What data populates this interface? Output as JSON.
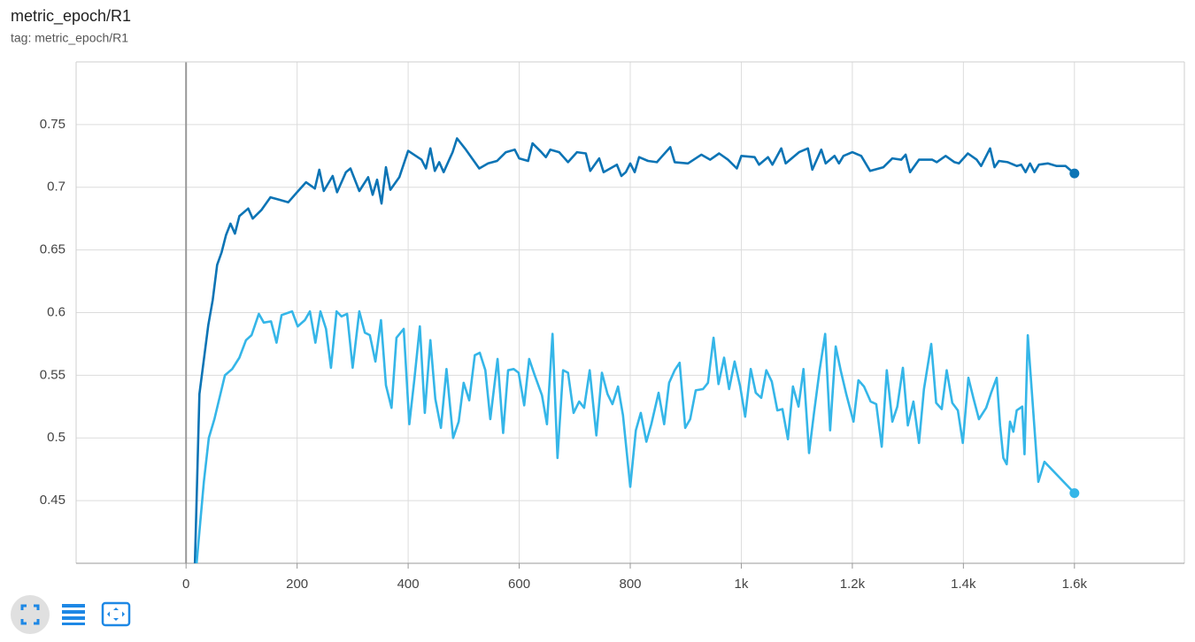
{
  "chart_data": {
    "type": "line",
    "title": "metric_epoch/R1",
    "subtitle": "tag: metric_epoch/R1",
    "xlim": [
      -198,
      1798
    ],
    "ylim": [
      0.4,
      0.8
    ],
    "xticks": [
      0,
      200,
      400,
      600,
      800,
      {
        "value": 1000,
        "label": "1k"
      },
      {
        "value": 1200,
        "label": "1.2k"
      },
      {
        "value": 1400,
        "label": "1.4k"
      },
      {
        "value": 1600,
        "label": "1.6k"
      }
    ],
    "yticks": [
      0.45,
      0.5,
      0.55,
      0.6,
      0.65,
      0.7,
      0.75
    ],
    "grid": true,
    "series": [
      {
        "color": "#0c74b5",
        "x": [
          16,
          24,
          40,
          48,
          56,
          64,
          72,
          80,
          88,
          96,
          112,
          120,
          136,
          152,
          168,
          184,
          200,
          216,
          232,
          240,
          248,
          264,
          272,
          288,
          296,
          312,
          328,
          336,
          344,
          352,
          360,
          368,
          384,
          400,
          424,
          432,
          440,
          448,
          456,
          464,
          480,
          488,
          504,
          528,
          544,
          560,
          576,
          592,
          600,
          616,
          624,
          640,
          648,
          656,
          672,
          688,
          704,
          720,
          728,
          744,
          752,
          776,
          784,
          792,
          800,
          808,
          816,
          832,
          848,
          856,
          872,
          880,
          904,
          928,
          944,
          960,
          976,
          992,
          1000,
          1024,
          1032,
          1048,
          1056,
          1072,
          1080,
          1104,
          1120,
          1128,
          1144,
          1152,
          1168,
          1176,
          1184,
          1200,
          1216,
          1232,
          1256,
          1272,
          1288,
          1296,
          1304,
          1320,
          1344,
          1352,
          1368,
          1384,
          1392,
          1408,
          1424,
          1432,
          1448,
          1456,
          1464,
          1480,
          1496,
          1504,
          1512,
          1520,
          1528,
          1536,
          1552,
          1568,
          1584,
          1600
        ],
        "values": [
          0.4,
          0.535,
          0.59,
          0.61,
          0.638,
          0.648,
          0.662,
          0.671,
          0.663,
          0.677,
          0.683,
          0.675,
          0.682,
          0.692,
          0.69,
          0.688,
          0.696,
          0.704,
          0.699,
          0.714,
          0.697,
          0.709,
          0.696,
          0.712,
          0.715,
          0.697,
          0.708,
          0.694,
          0.706,
          0.687,
          0.716,
          0.698,
          0.708,
          0.729,
          0.722,
          0.715,
          0.731,
          0.713,
          0.72,
          0.712,
          0.728,
          0.739,
          0.73,
          0.715,
          0.719,
          0.721,
          0.728,
          0.73,
          0.723,
          0.721,
          0.735,
          0.728,
          0.724,
          0.73,
          0.728,
          0.72,
          0.728,
          0.727,
          0.713,
          0.723,
          0.712,
          0.718,
          0.709,
          0.712,
          0.719,
          0.712,
          0.724,
          0.721,
          0.72,
          0.724,
          0.732,
          0.72,
          0.719,
          0.726,
          0.722,
          0.727,
          0.722,
          0.715,
          0.725,
          0.724,
          0.718,
          0.724,
          0.718,
          0.731,
          0.719,
          0.728,
          0.731,
          0.714,
          0.73,
          0.719,
          0.725,
          0.719,
          0.725,
          0.728,
          0.725,
          0.713,
          0.716,
          0.723,
          0.722,
          0.726,
          0.712,
          0.722,
          0.722,
          0.72,
          0.725,
          0.72,
          0.719,
          0.727,
          0.722,
          0.717,
          0.731,
          0.716,
          0.721,
          0.72,
          0.717,
          0.718,
          0.712,
          0.719,
          0.712,
          0.718,
          0.719,
          0.717,
          0.717,
          0.711
        ]
      },
      {
        "color": "#35b6e8",
        "x": [
          19,
          32,
          41,
          51,
          70,
          83,
          96,
          108,
          118,
          131,
          140,
          153,
          163,
          172,
          191,
          201,
          214,
          223,
          233,
          242,
          252,
          261,
          271,
          280,
          290,
          300,
          312,
          322,
          331,
          341,
          351,
          360,
          370,
          379,
          392,
          402,
          411,
          421,
          430,
          440,
          449,
          459,
          469,
          481,
          491,
          500,
          510,
          520,
          529,
          539,
          548,
          561,
          571,
          580,
          590,
          599,
          609,
          618,
          628,
          641,
          650,
          660,
          669,
          679,
          688,
          698,
          708,
          717,
          727,
          739,
          749,
          759,
          768,
          778,
          787,
          800,
          810,
          819,
          829,
          838,
          851,
          861,
          870,
          880,
          889,
          899,
          908,
          918,
          931,
          940,
          950,
          959,
          969,
          978,
          988,
          998,
          1007,
          1017,
          1026,
          1036,
          1045,
          1055,
          1065,
          1074,
          1084,
          1093,
          1103,
          1112,
          1122,
          1131,
          1141,
          1151,
          1160,
          1170,
          1179,
          1189,
          1202,
          1211,
          1221,
          1233,
          1243,
          1253,
          1262,
          1272,
          1281,
          1291,
          1300,
          1310,
          1320,
          1329,
          1342,
          1351,
          1361,
          1370,
          1380,
          1390,
          1399,
          1409,
          1418,
          1428,
          1441,
          1450,
          1460,
          1466,
          1472,
          1478,
          1484,
          1490,
          1496,
          1506,
          1510,
          1516,
          1526,
          1535,
          1546,
          1600
        ],
        "values": [
          0.4,
          0.465,
          0.5,
          0.515,
          0.55,
          0.555,
          0.564,
          0.578,
          0.582,
          0.599,
          0.592,
          0.593,
          0.576,
          0.598,
          0.601,
          0.589,
          0.594,
          0.601,
          0.576,
          0.601,
          0.587,
          0.556,
          0.601,
          0.597,
          0.599,
          0.556,
          0.601,
          0.584,
          0.582,
          0.561,
          0.594,
          0.542,
          0.524,
          0.58,
          0.587,
          0.511,
          0.546,
          0.589,
          0.52,
          0.578,
          0.531,
          0.508,
          0.555,
          0.5,
          0.513,
          0.544,
          0.53,
          0.566,
          0.568,
          0.554,
          0.515,
          0.563,
          0.504,
          0.554,
          0.555,
          0.552,
          0.526,
          0.563,
          0.55,
          0.534,
          0.511,
          0.583,
          0.484,
          0.554,
          0.552,
          0.52,
          0.529,
          0.524,
          0.554,
          0.502,
          0.552,
          0.535,
          0.527,
          0.541,
          0.518,
          0.461,
          0.506,
          0.52,
          0.497,
          0.511,
          0.536,
          0.511,
          0.544,
          0.554,
          0.56,
          0.508,
          0.515,
          0.538,
          0.539,
          0.544,
          0.58,
          0.543,
          0.564,
          0.539,
          0.561,
          0.541,
          0.517,
          0.555,
          0.536,
          0.532,
          0.554,
          0.545,
          0.522,
          0.523,
          0.499,
          0.541,
          0.525,
          0.555,
          0.488,
          0.52,
          0.554,
          0.583,
          0.506,
          0.573,
          0.554,
          0.535,
          0.513,
          0.546,
          0.541,
          0.529,
          0.527,
          0.493,
          0.554,
          0.513,
          0.525,
          0.556,
          0.51,
          0.529,
          0.496,
          0.539,
          0.575,
          0.528,
          0.523,
          0.554,
          0.528,
          0.522,
          0.496,
          0.548,
          0.532,
          0.515,
          0.524,
          0.536,
          0.548,
          0.51,
          0.484,
          0.479,
          0.513,
          0.505,
          0.522,
          0.525,
          0.487,
          0.582,
          0.52,
          0.465,
          0.481,
          0.456
        ]
      }
    ]
  }
}
